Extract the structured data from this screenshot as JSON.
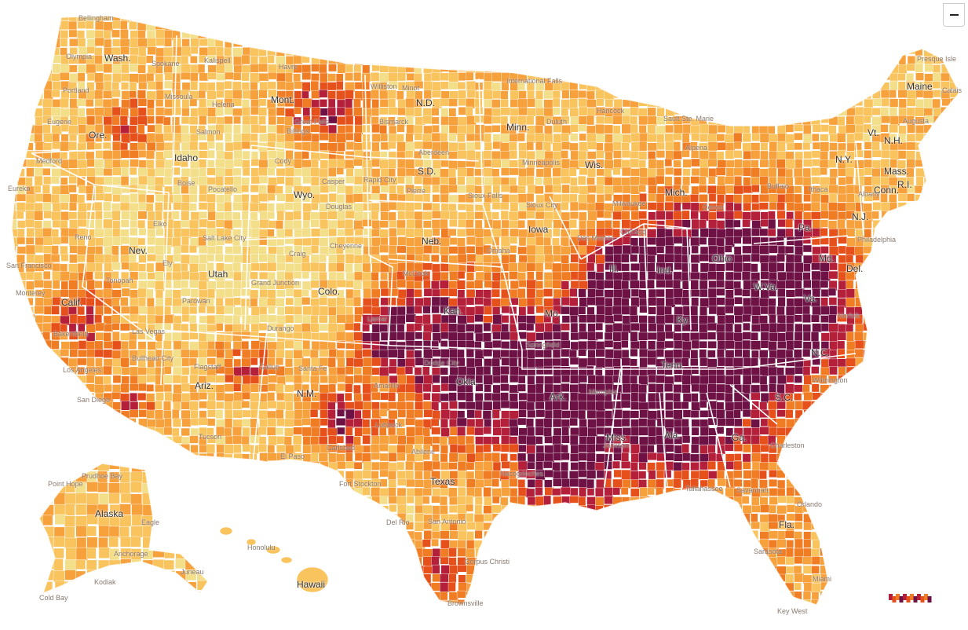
{
  "map": {
    "colors": {
      "lowest": "#f3de8a",
      "low": "#f9c35e",
      "medium": "#f7a13d",
      "high": "#f07d24",
      "higher": "#e6501b",
      "very_high": "#b41f3a",
      "extreme": "#6e1245",
      "no_data": "#e8e8e8",
      "border": "#ffffff"
    },
    "state_labels": [
      "Wash.",
      "Ore.",
      "Calif.",
      "Idaho",
      "Nev.",
      "Mont.",
      "Wyo.",
      "Utah",
      "Ariz.",
      "Colo.",
      "N.M.",
      "N.D.",
      "S.D.",
      "Neb.",
      "Kan.",
      "Okla.",
      "Texas",
      "Minn.",
      "Iowa",
      "Mo.",
      "Ark.",
      "Wis.",
      "Ill.",
      "Mich.",
      "Ind.",
      "Ohio",
      "Ky.",
      "Tenn.",
      "Miss.",
      "Ala.",
      "Ga.",
      "Fla.",
      "S.C.",
      "N.C.",
      "Va.",
      "W.Va.",
      "Pa.",
      "N.Y.",
      "Md.",
      "Del.",
      "N.J.",
      "Conn.",
      "R.I.",
      "Mass.",
      "Vt.",
      "N.H.",
      "Maine",
      "Alaska",
      "Hawaii"
    ],
    "city_labels": [
      "Bellingham",
      "Olympia",
      "Portland",
      "Spokane",
      "Eugene",
      "Medford",
      "Eureka",
      "Kalispell",
      "Great Falls",
      "Havre",
      "Missoula",
      "Helena",
      "Billings",
      "Salmon",
      "Boise",
      "Pocatello",
      "Williston",
      "Minot",
      "Bismarck",
      "Rapid City",
      "Pierre",
      "Sioux Falls",
      "Aberdeen",
      "Cody",
      "Casper",
      "Douglas",
      "Cheyenne",
      "Elko",
      "Reno",
      "Salt Lake City",
      "Grand Junction",
      "Craig",
      "Ely",
      "Tonopah",
      "Parowan",
      "Durango",
      "Lamar",
      "McCook",
      "Omaha",
      "Sioux City",
      "Des Moines",
      "San Francisco",
      "Monterey",
      "Bakersfield",
      "Los Angeles",
      "San Diego",
      "Las Vegas",
      "Bullhead City",
      "Flagstaff",
      "Tucson",
      "Santa Fe",
      "Gallup",
      "Carlsbad",
      "El Paso",
      "Amarillo",
      "Lubbock",
      "Abilene",
      "Fort Stockton",
      "Del Rio",
      "San Antonio",
      "Corpus Christi",
      "Brownsville",
      "Nacogdoches",
      "Dodge City",
      "Springfield",
      "International Falls",
      "Duluth",
      "Minneapolis",
      "Chicago",
      "Milwaukee",
      "Hancock",
      "Sault Ste. Marie",
      "Alpena",
      "Detroit",
      "Buffalo",
      "Ithaca",
      "Albany",
      "Augusta",
      "Presque Isle",
      "Calais",
      "Philadelphia",
      "Norfolk",
      "Wilmington",
      "Charleston",
      "Savannah",
      "Memphis",
      "Jackson",
      "Tallahassee",
      "Orlando",
      "Sarasota",
      "Miami",
      "Key West",
      "Point Hope",
      "Prudhoe Bay",
      "Anchorage",
      "Kodiak",
      "Cold Bay",
      "Juneau",
      "Eagle",
      "Honolulu"
    ]
  },
  "controls": {
    "zoom_out_icon": "minus-icon"
  }
}
